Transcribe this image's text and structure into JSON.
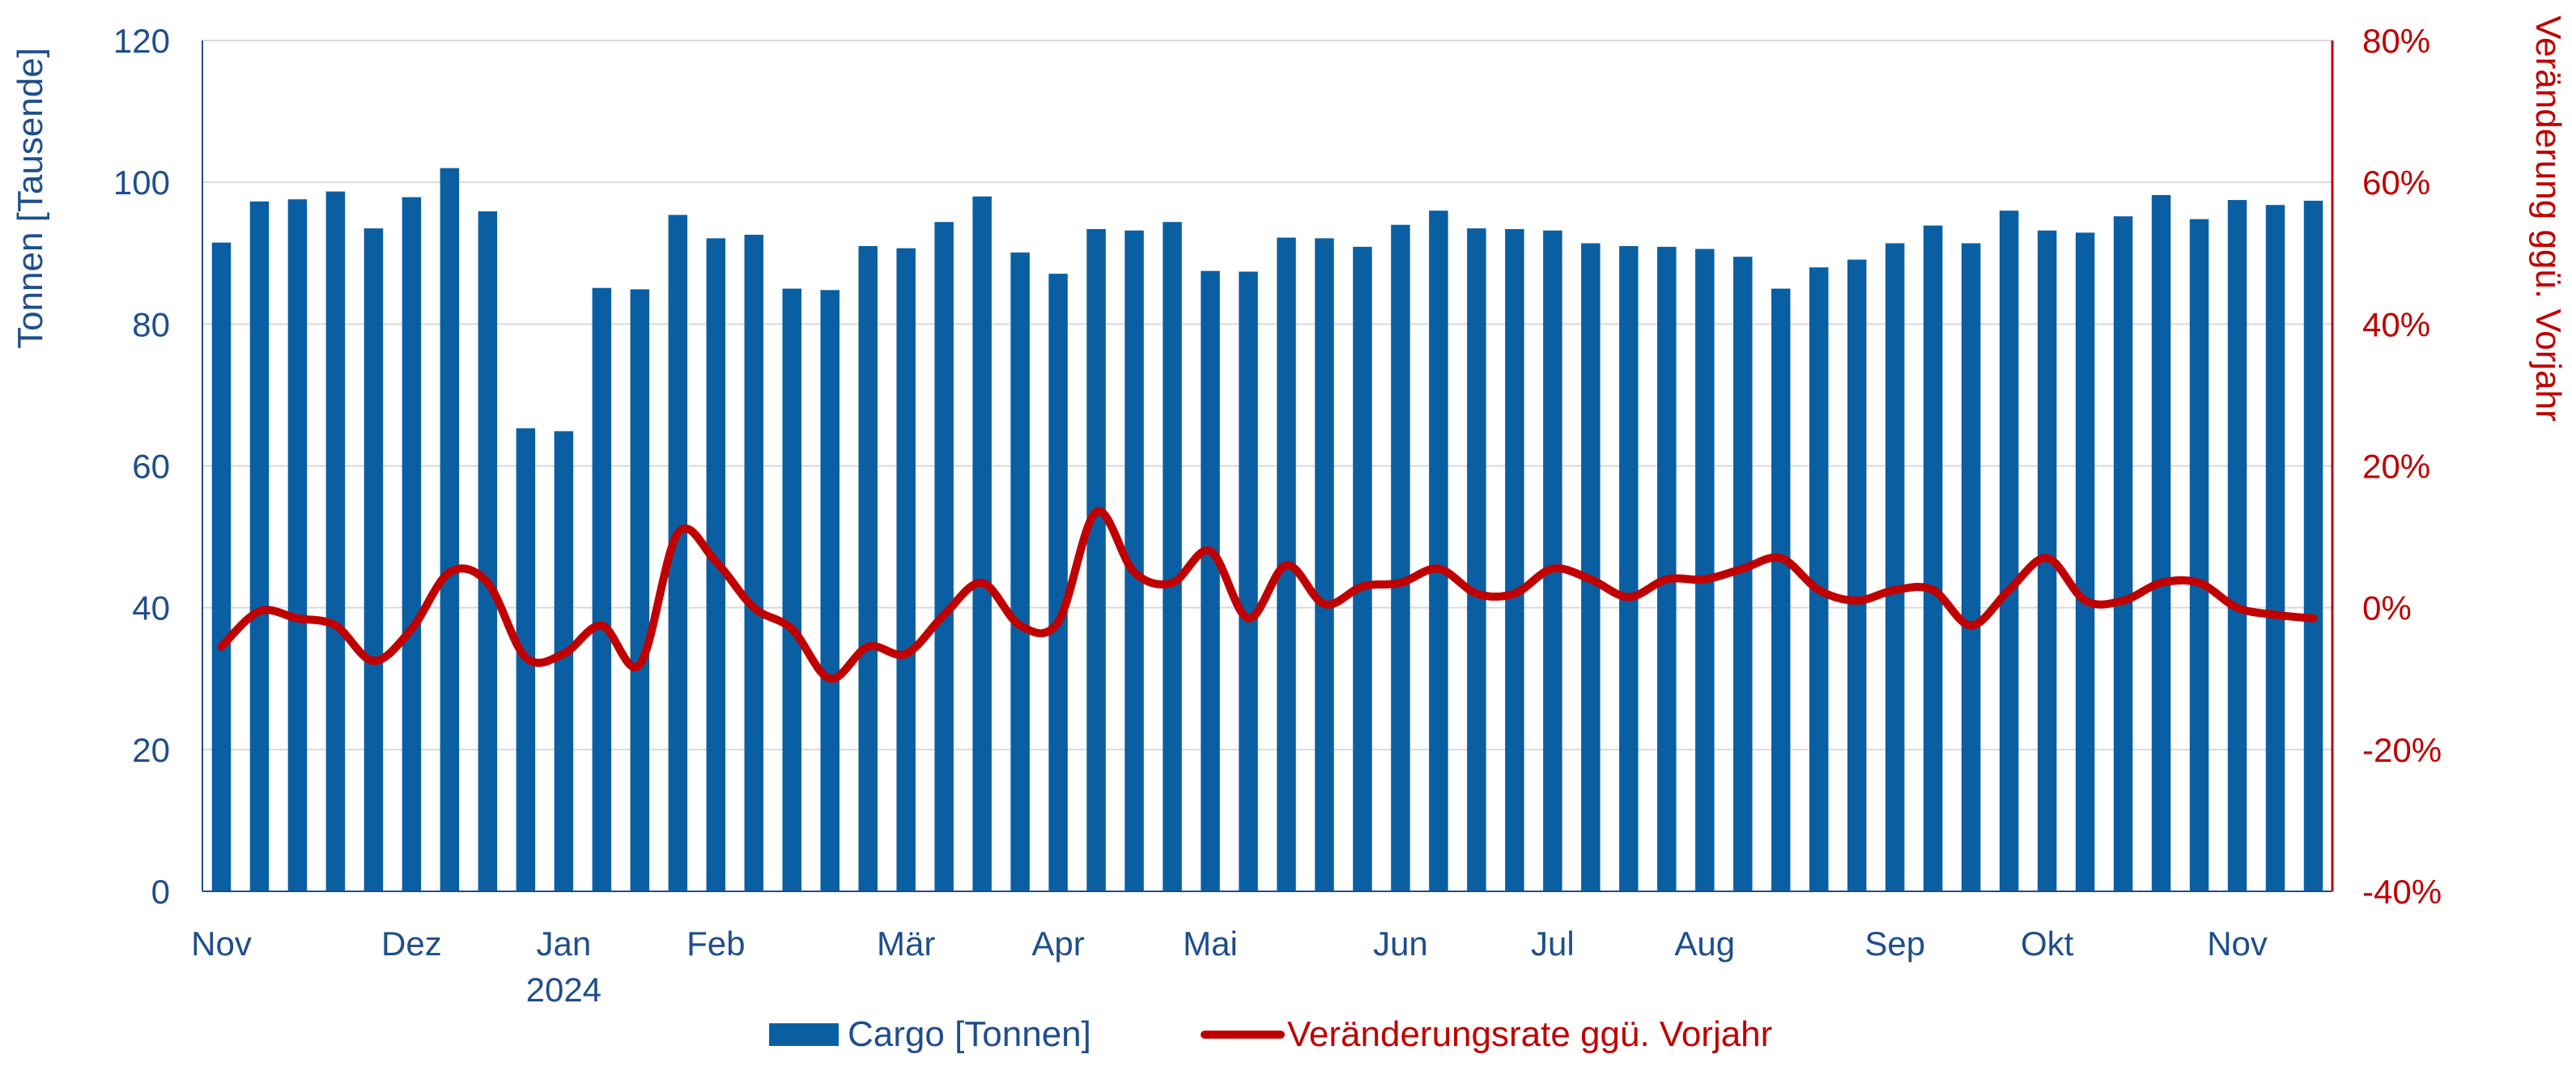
{
  "chart_data": {
    "type": "bar",
    "title": "",
    "ylabel": "Tonnen [Tausende]",
    "y2label": "Veränderung ggü. Vorjahr",
    "ylim": [
      0,
      120
    ],
    "yticks": [
      "0",
      "20",
      "40",
      "60",
      "80",
      "100",
      "120"
    ],
    "y2lim": [
      -40,
      80
    ],
    "y2ticks": [
      "-40%",
      "-20%",
      "0%",
      "20%",
      "40%",
      "60%",
      "80%"
    ],
    "grid": true,
    "legend_position": "bottom",
    "month_labels": [
      {
        "index": 0,
        "label": "Nov"
      },
      {
        "index": 5,
        "label": "Dez"
      },
      {
        "index": 9,
        "label": "Jan",
        "sub": "2024"
      },
      {
        "index": 13,
        "label": "Feb"
      },
      {
        "index": 18,
        "label": "Mär"
      },
      {
        "index": 22,
        "label": "Apr"
      },
      {
        "index": 26,
        "label": "Mai"
      },
      {
        "index": 31,
        "label": "Jun"
      },
      {
        "index": 35,
        "label": "Jul"
      },
      {
        "index": 39,
        "label": "Aug"
      },
      {
        "index": 44,
        "label": "Sep"
      },
      {
        "index": 48,
        "label": "Okt"
      },
      {
        "index": 53,
        "label": "Nov"
      }
    ],
    "series": [
      {
        "name": "Cargo [Tonnen]",
        "type": "bar",
        "axis": "left",
        "color": "#0a5fa3",
        "values": [
          91.5,
          97.3,
          97.6,
          98.7,
          93.5,
          97.9,
          102.0,
          95.9,
          65.3,
          64.9,
          85.1,
          84.9,
          95.4,
          92.1,
          92.6,
          85.0,
          84.8,
          91.0,
          90.7,
          94.4,
          98.0,
          90.1,
          87.1,
          93.4,
          93.2,
          94.4,
          87.5,
          87.4,
          92.2,
          92.1,
          90.9,
          94.0,
          96.0,
          93.5,
          93.4,
          93.2,
          91.4,
          91.0,
          90.9,
          90.6,
          89.5,
          85.0,
          88.0,
          89.1,
          91.4,
          93.9,
          91.4,
          96.0,
          93.2,
          92.9,
          95.2,
          98.2,
          94.8,
          97.5,
          96.8,
          97.4
        ]
      },
      {
        "name": "Veränderungsrate ggü. Vorjahr",
        "type": "line",
        "axis": "right",
        "color": "#c00000",
        "values": [
          -5.5,
          -0.5,
          -1.5,
          -2.5,
          -7.5,
          -3.0,
          5.0,
          3.5,
          -7.0,
          -6.5,
          -2.5,
          -8.0,
          10.5,
          6.5,
          0.0,
          -3.0,
          -10.0,
          -5.5,
          -6.5,
          -1.0,
          3.5,
          -2.5,
          -2.0,
          13.5,
          5.0,
          3.5,
          8.0,
          -1.5,
          6.0,
          0.5,
          3.0,
          3.5,
          5.5,
          2.0,
          2.0,
          5.5,
          4.0,
          1.5,
          4.0,
          4.0,
          5.5,
          7.0,
          2.5,
          1.0,
          2.5,
          2.5,
          -2.5,
          2.5,
          7.0,
          1.0,
          1.0,
          3.5,
          3.5,
          0.0,
          -1.0,
          -1.5
        ]
      }
    ]
  }
}
